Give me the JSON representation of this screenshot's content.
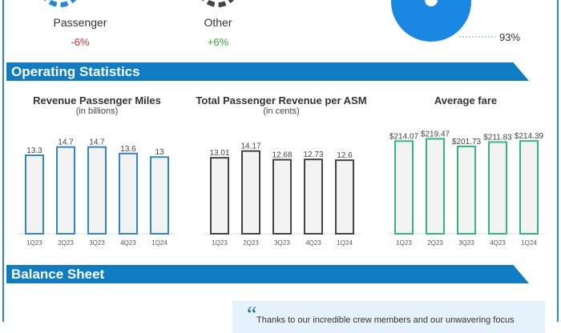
{
  "revenue_mix": {
    "items": [
      {
        "label": "Passenger",
        "change": "-6%",
        "color": "#d0323a",
        "icon": "passenger-dashed-ring-icon"
      },
      {
        "label": "Other",
        "change": "+6%",
        "color": "#3aa53a",
        "icon": "other-dashed-ring-icon"
      }
    ],
    "pie_share_label": "93%",
    "pie_color": "#1a88e3"
  },
  "sections": {
    "operating": "Operating Statistics",
    "balance": "Balance Sheet"
  },
  "chart_data": [
    {
      "type": "bar",
      "title": "Revenue Passenger Miles",
      "subtitle": "(in billions)",
      "categories": [
        "1Q23",
        "2Q23",
        "3Q23",
        "4Q23",
        "1Q24"
      ],
      "values": [
        13.3,
        14.7,
        14.7,
        13.6,
        13
      ],
      "labels": [
        "13.3",
        "14.7",
        "14.7",
        "13.6",
        "13"
      ],
      "ylim": [
        0,
        19
      ],
      "color": "#2f86d6"
    },
    {
      "type": "bar",
      "title": "Total Passenger Revenue per ASM",
      "subtitle": "(in cents)",
      "categories": [
        "1Q23",
        "2Q23",
        "3Q23",
        "4Q23",
        "1Q24"
      ],
      "values": [
        13.01,
        14.17,
        12.68,
        12.73,
        12.6
      ],
      "labels": [
        "13.01",
        "14.17",
        "12.68",
        "12.73",
        "12.6"
      ],
      "ylim": [
        0,
        19.2
      ],
      "color": "#444444"
    },
    {
      "type": "bar",
      "title": "Average fare",
      "subtitle": "",
      "categories": [
        "1Q23",
        "2Q23",
        "3Q23",
        "4Q23",
        "1Q24"
      ],
      "values": [
        214.07,
        219.47,
        201.73,
        211.83,
        214.39
      ],
      "labels": [
        "$214.07",
        "$219.47",
        "$201.73",
        "$211.83",
        "$214.39"
      ],
      "ylim": [
        0,
        259
      ],
      "color": "#2db884"
    }
  ],
  "quote": {
    "mark": "“",
    "text": "Thanks to our incredible crew members and our unwavering focus"
  }
}
